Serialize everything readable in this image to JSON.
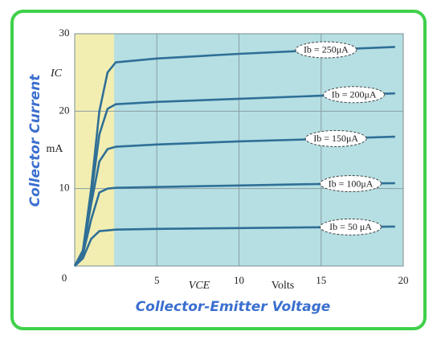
{
  "chart_data": {
    "type": "line",
    "y_title": "Collector Current",
    "x_title": "Collector-Emitter Voltage",
    "y_symbol": "IC",
    "y_unit": "mA",
    "x_symbol": "VCE",
    "x_unit": "Volts",
    "x": [
      0,
      0.5,
      1,
      1.5,
      2,
      2.5,
      5,
      10,
      15,
      19.5
    ],
    "series": [
      {
        "name": "Ib = 250μA",
        "color": "#2f6f96",
        "values": [
          0,
          2,
          10,
          20,
          25,
          26.3,
          26.8,
          27.4,
          27.9,
          28.3
        ]
      },
      {
        "name": "Ib = 200μA",
        "color": "#2f6f96",
        "values": [
          0,
          2,
          9,
          17,
          20.3,
          20.9,
          21.2,
          21.6,
          22,
          22.3
        ]
      },
      {
        "name": "Ib = 150μA",
        "color": "#2f6f96",
        "values": [
          0,
          1.8,
          8,
          13.5,
          15.1,
          15.4,
          15.7,
          16.1,
          16.4,
          16.7
        ]
      },
      {
        "name": "Ib = 100μA",
        "color": "#2f6f96",
        "values": [
          0,
          1.5,
          6,
          9.5,
          10,
          10.1,
          10.2,
          10.4,
          10.6,
          10.7
        ]
      },
      {
        "name": "Ib = 50 μA",
        "color": "#2f6f96",
        "values": [
          0,
          1,
          3.5,
          4.5,
          4.6,
          4.7,
          4.8,
          4.9,
          5,
          5.1
        ]
      }
    ],
    "xlim": [
      0,
      20
    ],
    "ylim": [
      0,
      30
    ],
    "xticks": [
      5,
      10,
      15,
      20
    ],
    "yticks": [
      0,
      10,
      20,
      30
    ],
    "grid": true,
    "shaded_region": {
      "xlim": [
        0,
        2.4
      ],
      "color": "#f2eeb2"
    },
    "background_color": "#b5dfe3"
  }
}
